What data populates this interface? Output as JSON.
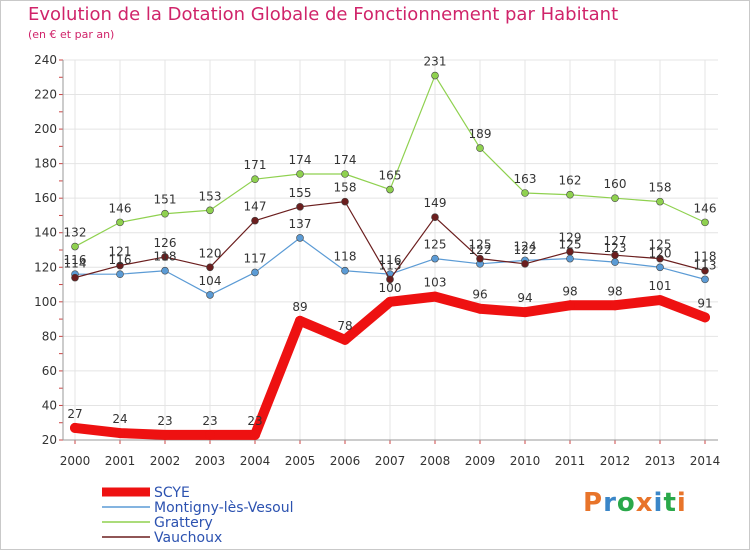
{
  "title": "Evolution de la Dotation Globale de Fonctionnement par Habitant",
  "subtitle": "(en € et par an)",
  "logo": {
    "text": "Proxiti",
    "colors": [
      "#e8742a",
      "#3a86c8",
      "#2aa84a",
      "#e8742a",
      "#3a86c8",
      "#2aa84a",
      "#e8742a"
    ]
  },
  "chart_data": {
    "type": "line",
    "x": [
      "2000",
      "2001",
      "2002",
      "2003",
      "2004",
      "2005",
      "2006",
      "2007",
      "2008",
      "2009",
      "2010",
      "2011",
      "2012",
      "2013",
      "2014"
    ],
    "ylim": [
      20,
      240
    ],
    "yticks": [
      20,
      40,
      60,
      80,
      100,
      120,
      140,
      160,
      180,
      200,
      220,
      240
    ],
    "grid": true,
    "legend_position": "bottom-left",
    "series": [
      {
        "name": "SCYE",
        "color": "#ee1111",
        "values": [
          27,
          24,
          23,
          23,
          23,
          89,
          78,
          100,
          103,
          96,
          94,
          98,
          98,
          101,
          91
        ]
      },
      {
        "name": "Montigny-lès-Vesoul",
        "color": "#5b9bd5",
        "values": [
          116,
          116,
          118,
          104,
          117,
          137,
          118,
          116,
          125,
          122,
          124,
          125,
          123,
          120,
          113
        ]
      },
      {
        "name": "Grattery",
        "color": "#8fd14f",
        "values": [
          132,
          146,
          151,
          153,
          171,
          174,
          174,
          165,
          231,
          189,
          163,
          162,
          160,
          158,
          146
        ]
      },
      {
        "name": "Vauchoux",
        "color": "#6b1e1e",
        "values": [
          114,
          121,
          126,
          120,
          147,
          155,
          158,
          113,
          149,
          125,
          122,
          129,
          127,
          125,
          118
        ]
      }
    ]
  }
}
